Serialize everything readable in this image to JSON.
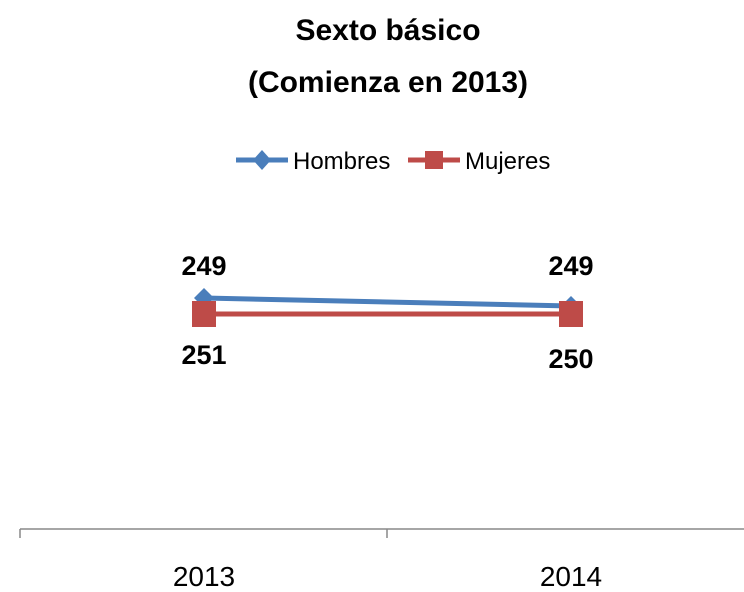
{
  "chart_data": {
    "type": "line",
    "title": "Sexto básico",
    "subtitle": "(Comienza en 2013)",
    "categories": [
      "2013",
      "2014"
    ],
    "series": [
      {
        "name": "Hombres",
        "values": [
          249,
          249
        ],
        "color": "#4A7EBB",
        "marker": "diamond"
      },
      {
        "name": "Mujeres",
        "values": [
          251,
          250
        ],
        "color": "#BE4B48",
        "marker": "square"
      }
    ],
    "xlabel": "",
    "ylabel": "",
    "legend_position": "top",
    "grid": false
  }
}
